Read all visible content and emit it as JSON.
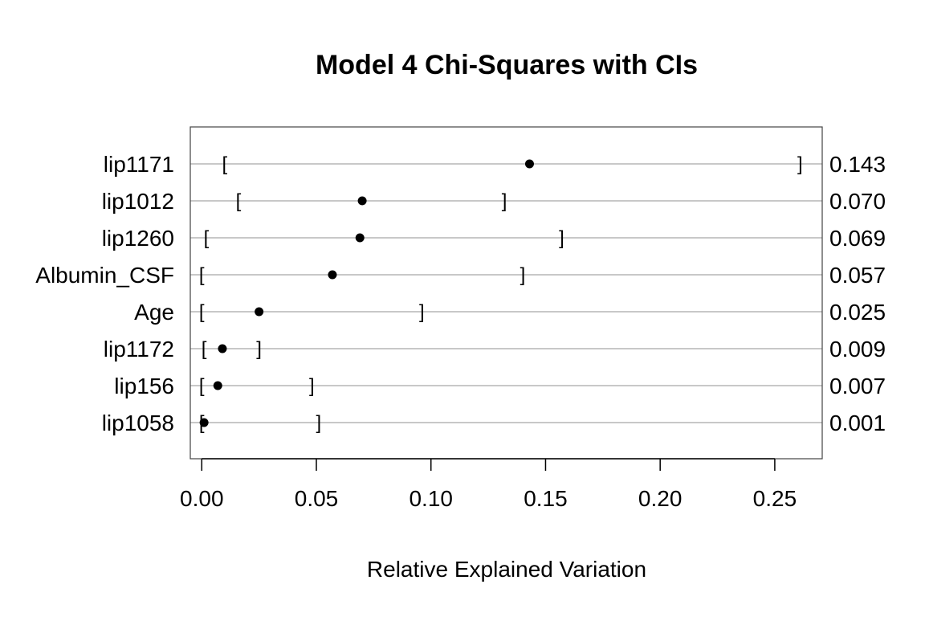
{
  "chart_data": {
    "type": "dot-plot",
    "title": "Model 4 Chi-Squares with CIs",
    "xlabel": "Relative Explained Variation",
    "ylabel": "",
    "xlim": [
      -0.005,
      0.2707
    ],
    "x_ticks": [
      0.0,
      0.05,
      0.1,
      0.15,
      0.2,
      0.25
    ],
    "x_tick_labels": [
      "0.00",
      "0.05",
      "0.10",
      "0.15",
      "0.20",
      "0.25"
    ],
    "grid": "horizontal",
    "categories": [
      "lip1171",
      "lip1012",
      "lip1260",
      "Albumin_CSF",
      "Age",
      "lip1172",
      "lip156",
      "lip1058"
    ],
    "values": [
      0.143,
      0.07,
      0.069,
      0.057,
      0.025,
      0.009,
      0.007,
      0.001
    ],
    "value_labels": [
      "0.143",
      "0.070",
      "0.069",
      "0.057",
      "0.025",
      "0.009",
      "0.007",
      "0.001"
    ],
    "ci_lower": [
      0.01,
      0.016,
      0.002,
      0.0,
      0.0,
      0.001,
      0.0,
      0.0
    ],
    "ci_upper": [
      0.261,
      0.132,
      0.157,
      0.14,
      0.096,
      0.025,
      0.048,
      0.051
    ]
  }
}
